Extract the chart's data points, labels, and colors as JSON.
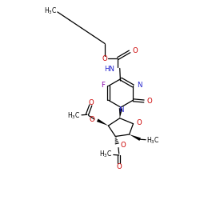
{
  "bg_color": "#ffffff",
  "black": "#000000",
  "blue": "#2222cc",
  "red": "#cc0000",
  "purple": "#8800aa",
  "figsize": [
    2.5,
    2.5
  ],
  "dpi": 100,
  "xlim": [
    0,
    10
  ],
  "ylim": [
    0,
    10
  ]
}
